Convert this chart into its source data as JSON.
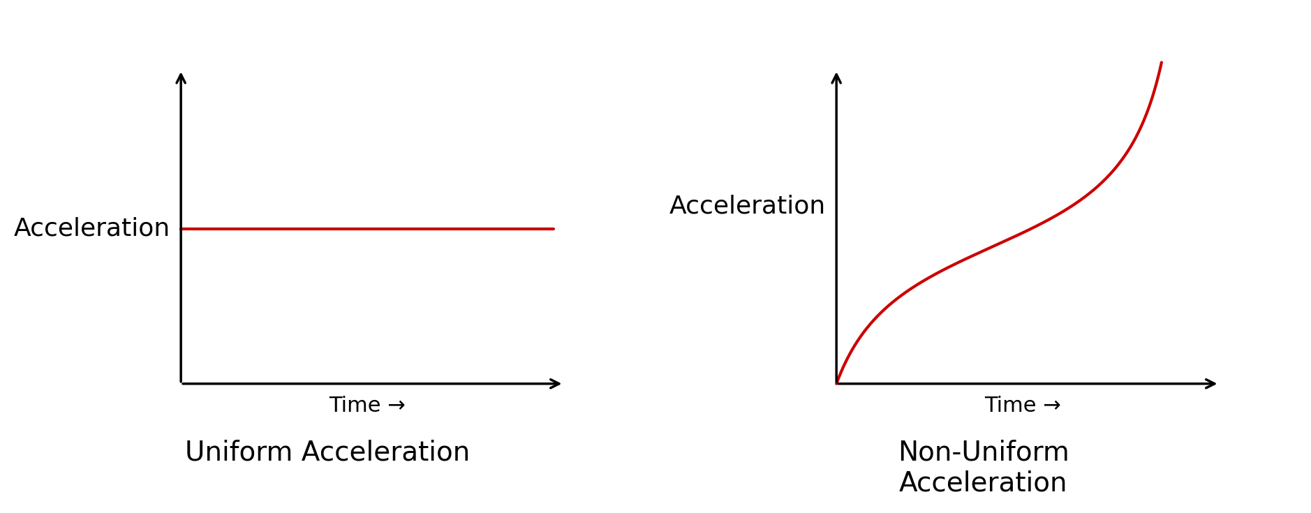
{
  "background_color": "#ffffff",
  "line_color": "#cc0000",
  "axis_color": "#000000",
  "text_color": "#000000",
  "line_width": 3.0,
  "axis_linewidth": 2.5,
  "label1": "Acceleration",
  "label2": "Acceleration",
  "xlabel": "Time →",
  "title1": "Uniform Acceleration",
  "title2": "Non-Uniform\nAcceleration",
  "font_size_label": 26,
  "font_size_axis_label": 22,
  "font_size_title": 28
}
